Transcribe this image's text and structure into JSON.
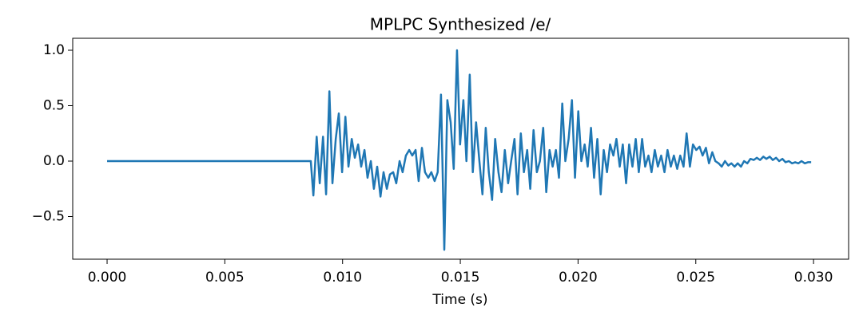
{
  "chart_data": {
    "type": "line",
    "title": "MPLPC Synthesized /e/",
    "x_label": "Time (s)",
    "xlim": [
      -0.00146,
      0.03149
    ],
    "ylim": [
      -0.885,
      1.108
    ],
    "xticks": [
      {
        "value": 0,
        "label": "0.000"
      },
      {
        "value": 0.005,
        "label": "0.005"
      },
      {
        "value": 0.01,
        "label": "0.010"
      },
      {
        "value": 0.015,
        "label": "0.015"
      },
      {
        "value": 0.02,
        "label": "0.020"
      },
      {
        "value": 0.025,
        "label": "0.025"
      },
      {
        "value": 0.03,
        "label": "0.030"
      }
    ],
    "yticks": [
      {
        "value": -0.5,
        "label": "−0.5"
      },
      {
        "value": 0,
        "label": "0.0"
      },
      0.5,
      {
        "value": 1,
        "label": "1.0"
      }
    ],
    "x": [
      0,
      0.00865,
      0.00876,
      0.0089,
      0.00903,
      0.00917,
      0.0093,
      0.00944,
      0.00957,
      0.00971,
      0.00984,
      0.00998,
      0.01012,
      0.01025,
      0.01039,
      0.01052,
      0.01066,
      0.01079,
      0.01093,
      0.01106,
      0.0112,
      0.01133,
      0.01147,
      0.01161,
      0.01174,
      0.01188,
      0.01201,
      0.01215,
      0.01228,
      0.01242,
      0.01255,
      0.01269,
      0.01283,
      0.01296,
      0.0131,
      0.01323,
      0.01337,
      0.0135,
      0.01364,
      0.01377,
      0.01391,
      0.01404,
      0.01418,
      0.01432,
      0.01445,
      0.01459,
      0.01472,
      0.01486,
      0.01499,
      0.01513,
      0.01526,
      0.0154,
      0.01553,
      0.01567,
      0.01581,
      0.01594,
      0.01608,
      0.01621,
      0.01635,
      0.01648,
      0.01662,
      0.01675,
      0.01689,
      0.01703,
      0.01716,
      0.0173,
      0.01743,
      0.01757,
      0.0177,
      0.01784,
      0.01797,
      0.01811,
      0.01825,
      0.01838,
      0.01852,
      0.01865,
      0.01879,
      0.01892,
      0.01906,
      0.01919,
      0.01933,
      0.01946,
      0.0196,
      0.01974,
      0.01987,
      0.02001,
      0.02014,
      0.02028,
      0.02041,
      0.02055,
      0.02068,
      0.02082,
      0.02096,
      0.02109,
      0.02123,
      0.02136,
      0.0215,
      0.02163,
      0.02177,
      0.0219,
      0.02204,
      0.02217,
      0.02231,
      0.02245,
      0.02258,
      0.02272,
      0.02285,
      0.02299,
      0.02312,
      0.02326,
      0.02339,
      0.02353,
      0.02367,
      0.0238,
      0.02394,
      0.02407,
      0.02421,
      0.02434,
      0.02448,
      0.02461,
      0.02475,
      0.02488,
      0.02502,
      0.02516,
      0.02529,
      0.02543,
      0.02556,
      0.0257,
      0.02583,
      0.02597,
      0.0261,
      0.02624,
      0.02638,
      0.02651,
      0.02665,
      0.02678,
      0.02692,
      0.02705,
      0.02719,
      0.02732,
      0.02746,
      0.02759,
      0.02773,
      0.02787,
      0.028,
      0.02814,
      0.02827,
      0.02841,
      0.02854,
      0.02868,
      0.02881,
      0.02895,
      0.02909,
      0.02922,
      0.02936,
      0.02949,
      0.02963,
      0.02976,
      0.0299
    ],
    "series": [
      {
        "color": "#1f77b4",
        "values": [
          0,
          0,
          -0.31,
          0.22,
          -0.2,
          0.22,
          -0.3,
          0.63,
          -0.2,
          0.2,
          0.43,
          -0.1,
          0.4,
          -0.05,
          0.2,
          0.03,
          0.15,
          -0.05,
          0.1,
          -0.15,
          0.0,
          -0.25,
          -0.05,
          -0.32,
          -0.1,
          -0.25,
          -0.12,
          -0.1,
          -0.2,
          0.0,
          -0.1,
          0.05,
          0.1,
          0.05,
          0.1,
          -0.18,
          0.12,
          -0.1,
          -0.15,
          -0.1,
          -0.18,
          -0.1,
          0.6,
          -0.8,
          0.55,
          0.35,
          -0.07,
          1.0,
          0.15,
          0.55,
          0.0,
          0.78,
          -0.1,
          0.35,
          0.0,
          -0.3,
          0.3,
          -0.1,
          -0.35,
          0.2,
          -0.1,
          -0.28,
          0.1,
          -0.2,
          0.0,
          0.2,
          -0.3,
          0.25,
          -0.1,
          0.1,
          -0.25,
          0.28,
          -0.1,
          0.0,
          0.3,
          -0.28,
          0.1,
          -0.05,
          0.1,
          -0.15,
          0.52,
          0.0,
          0.2,
          0.55,
          -0.15,
          0.45,
          0.0,
          0.15,
          -0.05,
          0.3,
          -0.15,
          0.2,
          -0.3,
          0.1,
          -0.1,
          0.15,
          0.05,
          0.2,
          -0.05,
          0.15,
          -0.2,
          0.15,
          -0.05,
          0.2,
          -0.1,
          0.2,
          -0.05,
          0.05,
          -0.1,
          0.1,
          -0.05,
          0.05,
          -0.1,
          0.1,
          -0.05,
          0.05,
          -0.07,
          0.05,
          -0.05,
          0.25,
          -0.05,
          0.15,
          0.1,
          0.13,
          0.05,
          0.12,
          -0.02,
          0.08,
          0.0,
          -0.02,
          -0.05,
          0.0,
          -0.04,
          -0.02,
          -0.05,
          -0.02,
          -0.05,
          0.0,
          -0.02,
          0.02,
          0.01,
          0.03,
          0.01,
          0.04,
          0.02,
          0.04,
          0.01,
          0.03,
          0.0,
          0.02,
          -0.01,
          0.0,
          -0.02,
          -0.01,
          -0.02,
          0.0,
          -0.02,
          -0.01,
          -0.01
        ]
      }
    ]
  }
}
